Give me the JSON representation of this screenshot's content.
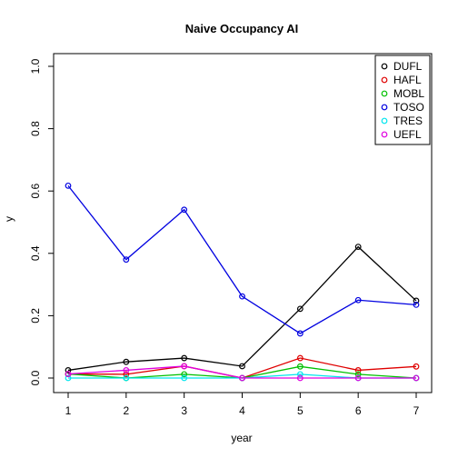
{
  "chart_data": {
    "type": "line",
    "title": "Naive Occupancy AI",
    "xlabel": "year",
    "ylabel": "y",
    "x": [
      1,
      2,
      3,
      4,
      5,
      6,
      7
    ],
    "xlim": [
      1,
      7
    ],
    "ylim": [
      0,
      1
    ],
    "x_ticks": [
      "1",
      "2",
      "3",
      "4",
      "5",
      "6",
      "7"
    ],
    "y_ticks": [
      "0.0",
      "0.2",
      "0.4",
      "0.6",
      "0.8",
      "1.0"
    ],
    "grid": false,
    "legend_position": "top-right",
    "series": [
      {
        "name": "DUFL",
        "color": "#000000",
        "values": [
          0.025,
          0.052,
          0.064,
          0.038,
          0.222,
          0.421,
          0.248
        ]
      },
      {
        "name": "HAFL",
        "color": "#DF0000",
        "values": [
          0.013,
          0.012,
          0.038,
          0.0,
          0.064,
          0.025,
          0.037
        ]
      },
      {
        "name": "MOBL",
        "color": "#00C000",
        "values": [
          0.013,
          0.0,
          0.012,
          0.0,
          0.037,
          0.012,
          0.0
        ]
      },
      {
        "name": "TOSO",
        "color": "#0000E0",
        "values": [
          0.617,
          0.38,
          0.54,
          0.262,
          0.143,
          0.25,
          0.235
        ]
      },
      {
        "name": "TRES",
        "color": "#00E5EE",
        "values": [
          0.0,
          0.0,
          0.0,
          0.0,
          0.012,
          0.0,
          0.0
        ]
      },
      {
        "name": "UEFL",
        "color": "#E000E0",
        "values": [
          0.013,
          0.025,
          0.038,
          0.0,
          0.0,
          0.0,
          0.0
        ]
      }
    ]
  }
}
